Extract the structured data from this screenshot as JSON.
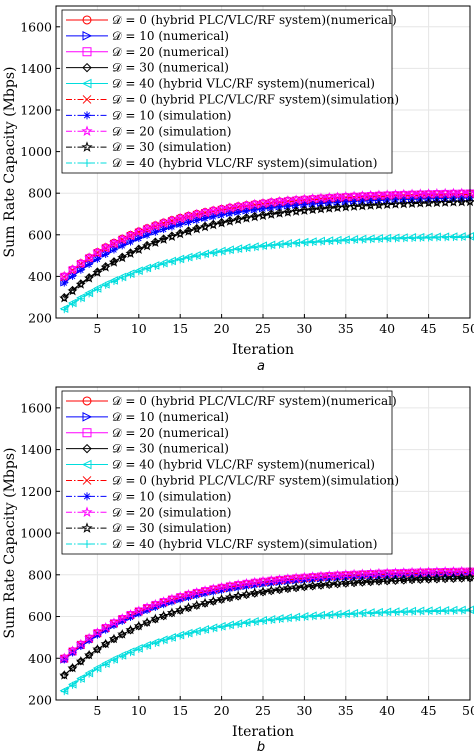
{
  "figure": {
    "caption_a": "a",
    "caption_b": "b"
  },
  "chart_data": [
    {
      "type": "line",
      "panel": "a",
      "xlabel": "Iteration",
      "ylabel": "Sum Rate Capacity (Mbps)",
      "xlim": [
        0,
        50
      ],
      "ylim": [
        200,
        1700
      ],
      "xticks": [
        5,
        10,
        15,
        20,
        25,
        30,
        35,
        40,
        45,
        50
      ],
      "yticks": [
        200,
        400,
        600,
        800,
        1000,
        1200,
        1400,
        1600
      ],
      "grid": true,
      "legend_position": "top-left",
      "series": [
        {
          "label": "𝒟 = 0 (hybrid PLC/VLC/RF system)(numerical)",
          "color": "#ff0000",
          "marker": "circle",
          "dash": "solid",
          "start": 400,
          "end": 805,
          "k": 0.085
        },
        {
          "label": "𝒟 = 10 (numerical)",
          "color": "#0000ff",
          "marker": "triangle-right",
          "dash": "solid",
          "start": 372,
          "end": 790,
          "k": 0.08
        },
        {
          "label": "𝒟 = 20 (numerical)",
          "color": "#ff00ff",
          "marker": "square",
          "dash": "solid",
          "start": 398,
          "end": 806,
          "k": 0.082
        },
        {
          "label": "𝒟 = 30 (numerical)",
          "color": "#000000",
          "marker": "diamond",
          "dash": "solid",
          "start": 300,
          "end": 775,
          "k": 0.075
        },
        {
          "label": "𝒟 = 40 (hybrid VLC/RF system)(numerical)",
          "color": "#00dddd",
          "marker": "triangle-left",
          "dash": "solid",
          "start": 245,
          "end": 600,
          "k": 0.08
        },
        {
          "label": "𝒟 = 0 (hybrid PLC/VLC/RF system)(simulation)",
          "color": "#ff0000",
          "marker": "x",
          "dash": "dashdot",
          "start": 395,
          "end": 800,
          "k": 0.085
        },
        {
          "label": "𝒟 = 10 (simulation)",
          "color": "#0000ff",
          "marker": "asterisk",
          "dash": "dashdot",
          "start": 368,
          "end": 785,
          "k": 0.08
        },
        {
          "label": "𝒟 = 20 (simulation)",
          "color": "#ff00ff",
          "marker": "star",
          "dash": "dashdot",
          "start": 402,
          "end": 810,
          "k": 0.082
        },
        {
          "label": "𝒟 = 30 (simulation)",
          "color": "#000000",
          "marker": "star",
          "dash": "dashdot",
          "start": 295,
          "end": 770,
          "k": 0.075
        },
        {
          "label": "𝒟 = 40 (hybrid VLC/RF system)(simulation)",
          "color": "#00dddd",
          "marker": "plus",
          "dash": "dashdot",
          "start": 240,
          "end": 595,
          "k": 0.08
        }
      ]
    },
    {
      "type": "line",
      "panel": "b",
      "xlabel": "Iteration",
      "ylabel": "Sum Rate Capacity (Mbps)",
      "xlim": [
        0,
        50
      ],
      "ylim": [
        200,
        1700
      ],
      "xticks": [
        5,
        10,
        15,
        20,
        25,
        30,
        35,
        40,
        45,
        50
      ],
      "yticks": [
        200,
        400,
        600,
        800,
        1000,
        1200,
        1400,
        1600
      ],
      "grid": true,
      "legend_position": "top-left",
      "series": [
        {
          "label": "𝒟 = 0 (hybrid PLC/VLC/RF system)(numerical)",
          "color": "#ff0000",
          "marker": "circle",
          "dash": "solid",
          "start": 400,
          "end": 820,
          "k": 0.085
        },
        {
          "label": "𝒟 = 10 (numerical)",
          "color": "#0000ff",
          "marker": "triangle-right",
          "dash": "solid",
          "start": 395,
          "end": 815,
          "k": 0.083
        },
        {
          "label": "𝒟 = 20 (numerical)",
          "color": "#ff00ff",
          "marker": "square",
          "dash": "solid",
          "start": 398,
          "end": 822,
          "k": 0.085
        },
        {
          "label": "𝒟 = 30 (numerical)",
          "color": "#000000",
          "marker": "diamond",
          "dash": "solid",
          "start": 320,
          "end": 795,
          "k": 0.075
        },
        {
          "label": "𝒟 = 40 (hybrid VLC/RF system)(numerical)",
          "color": "#00dddd",
          "marker": "triangle-left",
          "dash": "solid",
          "start": 245,
          "end": 640,
          "k": 0.08
        },
        {
          "label": "𝒟 = 0 (hybrid PLC/VLC/RF system)(simulation)",
          "color": "#ff0000",
          "marker": "x",
          "dash": "dashdot",
          "start": 398,
          "end": 818,
          "k": 0.085
        },
        {
          "label": "𝒟 = 10 (simulation)",
          "color": "#0000ff",
          "marker": "asterisk",
          "dash": "dashdot",
          "start": 392,
          "end": 812,
          "k": 0.083
        },
        {
          "label": "𝒟 = 20 (simulation)",
          "color": "#ff00ff",
          "marker": "star",
          "dash": "dashdot",
          "start": 402,
          "end": 825,
          "k": 0.085
        },
        {
          "label": "𝒟 = 30 (simulation)",
          "color": "#000000",
          "marker": "star",
          "dash": "dashdot",
          "start": 318,
          "end": 800,
          "k": 0.075
        },
        {
          "label": "𝒟 = 40 (hybrid VLC/RF system)(simulation)",
          "color": "#00dddd",
          "marker": "plus",
          "dash": "dashdot",
          "start": 240,
          "end": 635,
          "k": 0.08
        }
      ]
    }
  ]
}
